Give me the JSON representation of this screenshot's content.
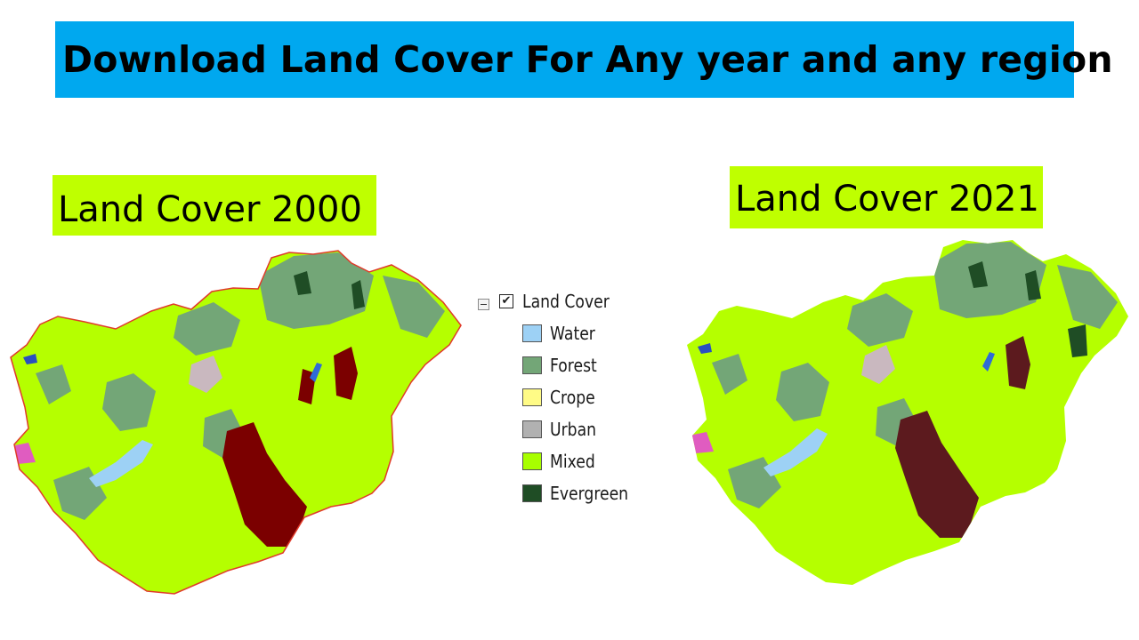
{
  "title": "Download Land Cover For Any year and any region",
  "maps": {
    "left": {
      "label": "Land Cover 2000"
    },
    "right": {
      "label": "Land Cover 2021"
    }
  },
  "legend": {
    "title": "Land Cover",
    "checked": "✔",
    "items": [
      {
        "label": "Water",
        "color": "#9dd1f5"
      },
      {
        "label": "Forest",
        "color": "#73a677"
      },
      {
        "label": "Crope",
        "color": "#fffb86"
      },
      {
        "label": "Urban",
        "color": "#b1b1b1"
      },
      {
        "label": "Mixed",
        "color": "#a8ff00"
      },
      {
        "label": "Evergreen",
        "color": "#1f4d25"
      }
    ]
  },
  "palette": {
    "mixed": "#b5ff00",
    "forest": "#73a677",
    "urban": "#c9b8bf",
    "water": "#9dd1f5",
    "dark_red": "#7b0000",
    "dark_maroon": "#5c1a1e",
    "evergreen": "#1f4d25",
    "border_2000": "#e03a2a"
  }
}
